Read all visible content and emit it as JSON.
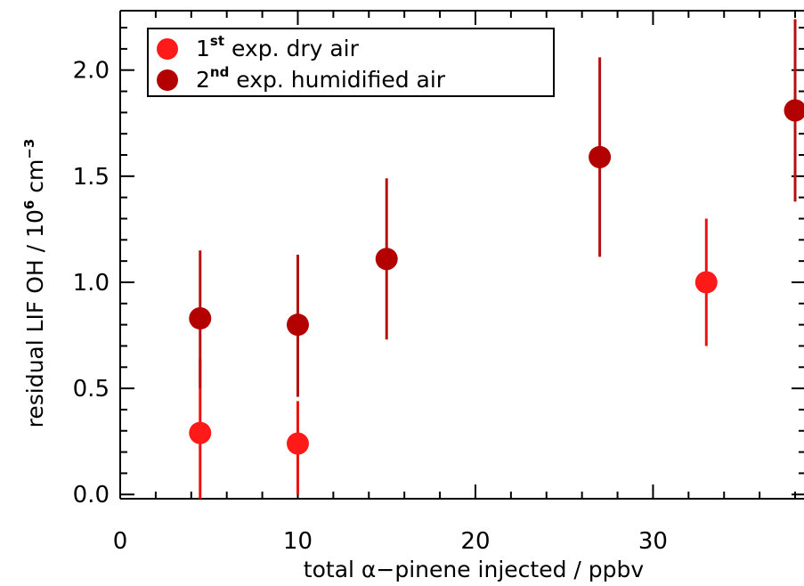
{
  "chart_data": {
    "type": "scatter",
    "xlabel": "total α−pinene injected / ppbv",
    "ylabel": {
      "prefix": "residual LIF OH / 10",
      "exp": "6",
      "unit": " cm",
      "unit_exp": "−3"
    },
    "xlim": [
      0,
      38.5
    ],
    "ylim": [
      -0.02,
      2.28
    ],
    "x_ticks": [
      0,
      10,
      20,
      30
    ],
    "x_tick_labels": [
      "0",
      "10",
      "20",
      "30"
    ],
    "x_minor_step": 2,
    "y_ticks": [
      0.0,
      0.5,
      1.0,
      1.5,
      2.0
    ],
    "y_tick_labels": [
      "0.0",
      "0.5",
      "1.0",
      "1.5",
      "2.0"
    ],
    "y_minor_step": 0.1,
    "grid": false,
    "legend_position": "top-left",
    "series": [
      {
        "name": "1st exp. dry air",
        "legend": {
          "base": "1",
          "sup": "st",
          "rest": " exp. dry air"
        },
        "color": "#ff1a1a",
        "error_color": "#ee1111",
        "points": [
          {
            "x": 4.5,
            "y": 0.29,
            "lo": -0.05,
            "hi": 0.64
          },
          {
            "x": 10.0,
            "y": 0.24,
            "lo": 0.0,
            "hi": 0.44
          },
          {
            "x": 33.0,
            "y": 1.0,
            "lo": 0.7,
            "hi": 1.3
          }
        ]
      },
      {
        "name": "2nd exp. humidified air",
        "legend": {
          "base": "2",
          "sup": "nd",
          "rest": " exp. humidified air"
        },
        "color": "#b30000",
        "error_color": "#b81010",
        "points": [
          {
            "x": 4.5,
            "y": 0.83,
            "lo": 0.5,
            "hi": 1.15
          },
          {
            "x": 10.0,
            "y": 0.8,
            "lo": 0.46,
            "hi": 1.13
          },
          {
            "x": 15.0,
            "y": 1.11,
            "lo": 0.73,
            "hi": 1.49
          },
          {
            "x": 27.0,
            "y": 1.59,
            "lo": 1.12,
            "hi": 2.06
          },
          {
            "x": 38.0,
            "y": 1.81,
            "lo": 1.38,
            "hi": 2.24
          }
        ]
      }
    ]
  }
}
